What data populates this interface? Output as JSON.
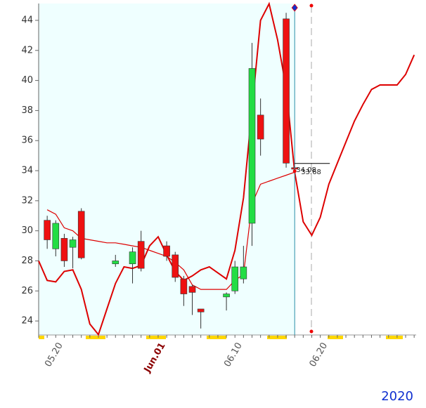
{
  "chart_data": {
    "type": "candlestick",
    "categories": [
      null,
      null,
      null,
      "05.20",
      null,
      null,
      null,
      null,
      null,
      null,
      null,
      null,
      null,
      null,
      null,
      "Jun.01",
      null,
      null,
      null,
      null,
      null,
      null,
      null,
      null,
      "06.10",
      null,
      null,
      null,
      null,
      null,
      null,
      null,
      null,
      null,
      "06.20",
      null,
      null,
      null,
      null,
      null,
      null,
      null,
      null,
      null,
      null
    ],
    "open": [
      null,
      29.4,
      30.5,
      28.0,
      29.4,
      28.2,
      null,
      null,
      null,
      28.0,
      null,
      28.6,
      27.5,
      null,
      null,
      28.3,
      26.9,
      25.8,
      25.9,
      24.6,
      null,
      null,
      25.8,
      27.6,
      27.6,
      40.8,
      36.1,
      null,
      null,
      34.5,
      34.1,
      null,
      null,
      null,
      null,
      null,
      null,
      null,
      null,
      null,
      null,
      null,
      null,
      null,
      null
    ],
    "high": [
      null,
      31.0,
      30.7,
      29.8,
      29.6,
      31.5,
      null,
      null,
      null,
      28.4,
      null,
      28.9,
      30.0,
      null,
      null,
      29.3,
      28.6,
      27.0,
      26.4,
      24.8,
      null,
      null,
      25.9,
      28.0,
      29.0,
      42.5,
      38.8,
      null,
      null,
      44.5,
      34.3,
      null,
      null,
      null,
      null,
      null,
      null,
      null,
      null,
      null,
      null,
      null,
      null,
      null,
      null
    ],
    "low": [
      null,
      28.8,
      28.3,
      27.6,
      27.5,
      28.1,
      null,
      null,
      null,
      27.6,
      null,
      26.5,
      27.3,
      null,
      null,
      28.0,
      26.6,
      25.0,
      24.4,
      23.5,
      null,
      null,
      24.7,
      25.8,
      26.5,
      29.0,
      35.0,
      null,
      null,
      34.2,
      33.9,
      null,
      null,
      null,
      null,
      null,
      null,
      null,
      null,
      null,
      null,
      null,
      null,
      null,
      null
    ],
    "close": [
      null,
      30.7,
      28.8,
      29.5,
      28.9,
      31.3,
      null,
      null,
      null,
      27.8,
      null,
      27.8,
      29.3,
      null,
      null,
      29.0,
      28.4,
      26.8,
      26.3,
      24.8,
      null,
      null,
      25.6,
      26.0,
      26.8,
      30.5,
      37.7,
      null,
      null,
      44.1,
      34.2,
      null,
      null,
      null,
      null,
      null,
      null,
      null,
      null,
      null,
      null,
      null,
      null,
      null,
      null
    ],
    "up_color": "#ee1111",
    "down_color": "#22dd44",
    "lines": [
      {
        "color": "#dd0000",
        "values": [
          28.0,
          26.7,
          26.6,
          27.3,
          27.4,
          26.1,
          23.8,
          23.1,
          24.8,
          26.5,
          27.6,
          27.5,
          27.7,
          29.0,
          29.6,
          28.4,
          27.3,
          26.7,
          27.0,
          27.4,
          27.6,
          27.2,
          26.8,
          28.7,
          32.2,
          38.1,
          44.0,
          45.1,
          42.7,
          39.5,
          33.9,
          30.6,
          29.7,
          30.9,
          33.1,
          34.5,
          35.9,
          37.3,
          38.4,
          39.4,
          39.7,
          39.7,
          39.7,
          40.4,
          41.7
        ]
      },
      {
        "color": "#dd0000",
        "values": [
          null,
          31.4,
          31.1,
          30.2,
          30.0,
          29.5,
          29.4,
          29.3,
          29.2,
          29.2,
          29.1,
          29.0,
          28.9,
          28.7,
          28.5,
          28.3,
          27.9,
          27.4,
          26.4,
          26.1,
          26.1,
          26.1,
          26.1,
          26.7,
          27.1,
          31.8,
          33.1,
          33.3,
          33.5,
          33.7,
          33.9,
          null,
          null,
          null,
          null,
          null,
          null,
          null,
          null,
          null,
          null,
          null,
          null,
          null,
          null
        ]
      }
    ],
    "ylim": [
      23.07,
      45.12
    ],
    "yticks": [
      24,
      26,
      28,
      30,
      32,
      34,
      36,
      38,
      40,
      42,
      44
    ],
    "annotations": [
      "34.08",
      "33.68"
    ],
    "year_label": "2020"
  }
}
